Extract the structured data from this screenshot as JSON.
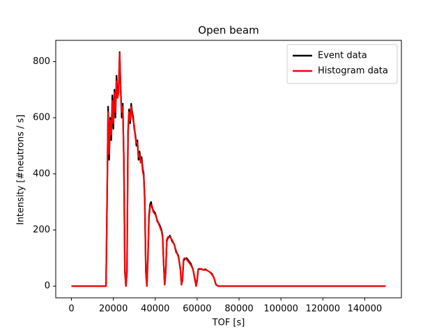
{
  "chart_data": {
    "type": "line",
    "title": "Open beam",
    "x_label": "TOF [s]",
    "y_label": "Intensity [#neutrons / s]",
    "x": [
      0,
      16500,
      17000,
      17500,
      18000,
      18500,
      19000,
      19500,
      20000,
      20500,
      21000,
      21500,
      22000,
      22500,
      23000,
      23500,
      24000,
      24500,
      25000,
      25500,
      26000,
      26500,
      27000,
      27500,
      28000,
      28500,
      29000,
      29500,
      30000,
      30500,
      31000,
      31500,
      32000,
      32500,
      33000,
      33500,
      34000,
      34500,
      35000,
      35500,
      36000,
      36500,
      37000,
      37500,
      38000,
      38500,
      39000,
      40000,
      41000,
      42000,
      43000,
      43500,
      44000,
      44500,
      45000,
      45500,
      46000,
      47000,
      48000,
      49000,
      50000,
      51000,
      52000,
      52500,
      53000,
      53500,
      54000,
      55000,
      56000,
      57000,
      58000,
      59000,
      59500,
      60000,
      60500,
      61000,
      62000,
      63000,
      64000,
      65000,
      66000,
      67000,
      68000,
      69000,
      70000,
      150000
    ],
    "series": [
      {
        "name": "Event data",
        "color": "#000000",
        "values": [
          0,
          0,
          300,
          640,
          450,
          600,
          520,
          680,
          560,
          700,
          600,
          750,
          680,
          700,
          834,
          700,
          600,
          650,
          450,
          50,
          0,
          50,
          550,
          630,
          580,
          650,
          620,
          600,
          560,
          540,
          500,
          520,
          450,
          480,
          450,
          460,
          420,
          400,
          300,
          50,
          0,
          100,
          250,
          290,
          300,
          280,
          270,
          260,
          230,
          220,
          200,
          180,
          80,
          5,
          50,
          160,
          170,
          180,
          160,
          150,
          120,
          110,
          60,
          5,
          20,
          90,
          95,
          100,
          90,
          80,
          60,
          20,
          0,
          20,
          60,
          62,
          60,
          58,
          60,
          55,
          50,
          45,
          30,
          5,
          0,
          0
        ]
      },
      {
        "name": "Histogram data",
        "color": "#ff0000",
        "values": [
          0,
          0,
          310,
          620,
          470,
          590,
          540,
          660,
          580,
          690,
          620,
          730,
          670,
          690,
          830,
          690,
          620,
          640,
          460,
          60,
          0,
          60,
          540,
          620,
          590,
          640,
          610,
          590,
          570,
          530,
          510,
          510,
          460,
          470,
          440,
          450,
          410,
          390,
          310,
          60,
          0,
          110,
          240,
          280,
          290,
          285,
          265,
          255,
          235,
          215,
          195,
          175,
          85,
          5,
          55,
          165,
          175,
          175,
          165,
          150,
          125,
          105,
          65,
          5,
          25,
          95,
          100,
          95,
          85,
          75,
          60,
          25,
          0,
          25,
          60,
          60,
          62,
          57,
          58,
          55,
          50,
          42,
          30,
          5,
          0,
          0
        ]
      }
    ],
    "xlim": [
      -7500,
      157500
    ],
    "ylim": [
      -41.7,
      875.7
    ],
    "xticks": [
      0,
      20000,
      40000,
      60000,
      80000,
      100000,
      120000,
      140000
    ],
    "yticks": [
      0,
      200,
      400,
      600,
      800
    ],
    "legend": "upper right"
  }
}
